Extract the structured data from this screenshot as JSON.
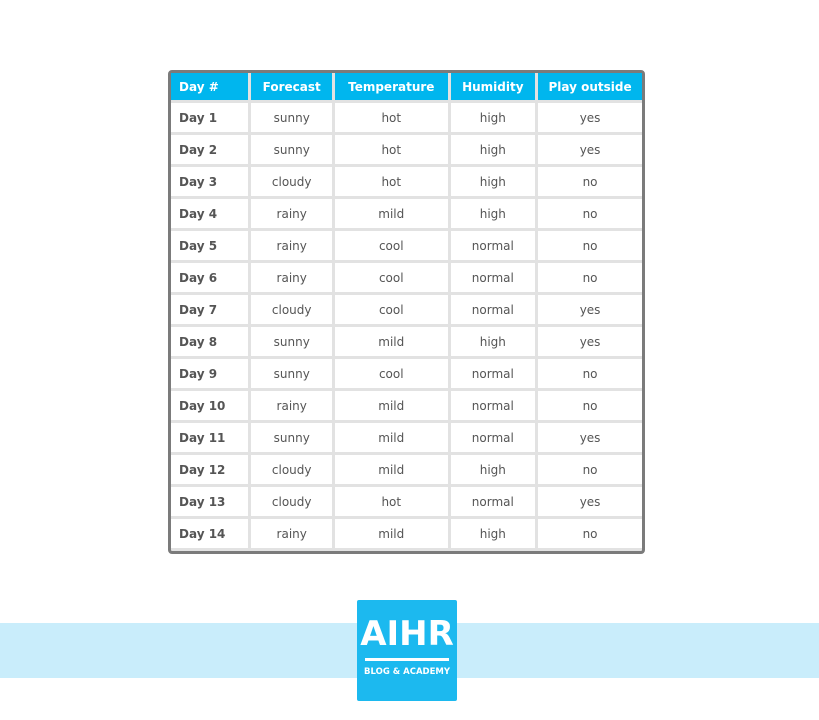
{
  "table": {
    "headers": [
      "Day #",
      "Forecast",
      "Temperature",
      "Humidity",
      "Play outside"
    ],
    "rows": [
      [
        "Day 1",
        "sunny",
        "hot",
        "high",
        "yes"
      ],
      [
        "Day 2",
        "sunny",
        "hot",
        "high",
        "yes"
      ],
      [
        "Day 3",
        "cloudy",
        "hot",
        "high",
        "no"
      ],
      [
        "Day 4",
        "rainy",
        "mild",
        "high",
        "no"
      ],
      [
        "Day 5",
        "rainy",
        "cool",
        "normal",
        "no"
      ],
      [
        "Day 6",
        "rainy",
        "cool",
        "normal",
        "no"
      ],
      [
        "Day 7",
        "cloudy",
        "cool",
        "normal",
        "yes"
      ],
      [
        "Day 8",
        "sunny",
        "mild",
        "high",
        "yes"
      ],
      [
        "Day 9",
        "sunny",
        "cool",
        "normal",
        "no"
      ],
      [
        "Day 10",
        "rainy",
        "mild",
        "normal",
        "no"
      ],
      [
        "Day 11",
        "sunny",
        "mild",
        "normal",
        "yes"
      ],
      [
        "Day 12",
        "cloudy",
        "mild",
        "high",
        "no"
      ],
      [
        "Day 13",
        "cloudy",
        "hot",
        "normal",
        "yes"
      ],
      [
        "Day 14",
        "rainy",
        "mild",
        "high",
        "no"
      ]
    ]
  },
  "logo": {
    "title": "AIHR",
    "subtitle": "BLOG & ACADEMY"
  },
  "colors": {
    "header": "#00b6ee",
    "border": "#7b7b7b",
    "banner": "#c9edfb",
    "logo": "#1cb9ef"
  }
}
